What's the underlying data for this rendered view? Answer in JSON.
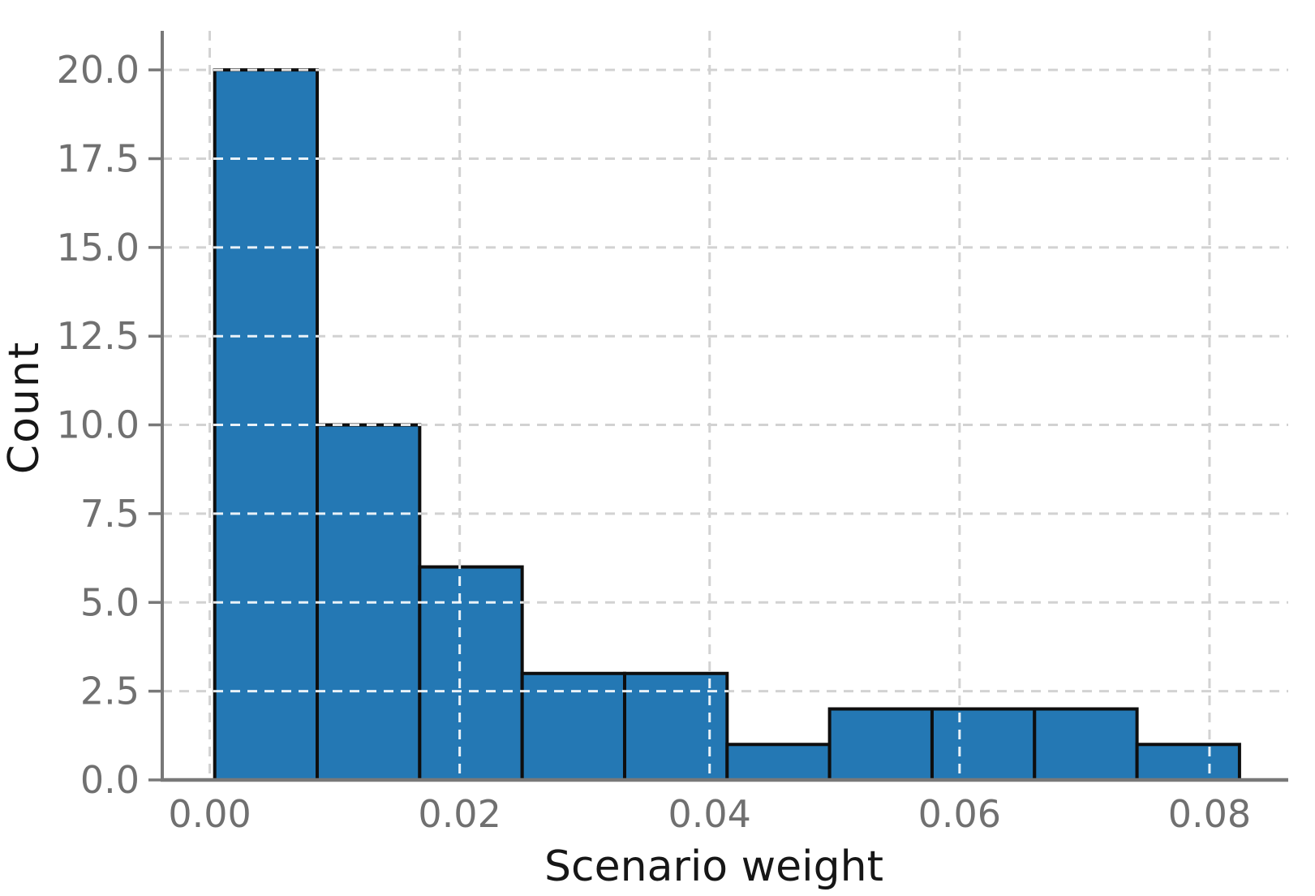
{
  "chart_data": {
    "type": "bar",
    "variant": "histogram",
    "title": "",
    "xlabel": "Scenario weight",
    "ylabel": "Count",
    "bins": {
      "start": 0.0004,
      "width": 0.0082,
      "count": 10,
      "edges": [
        0.0004,
        0.0086,
        0.0168,
        0.025,
        0.0332,
        0.0414,
        0.0496,
        0.0578,
        0.066,
        0.0742,
        0.0824
      ]
    },
    "counts": [
      20,
      10,
      6,
      3,
      3,
      1,
      2,
      2,
      2,
      1
    ],
    "total_observations": 50,
    "x_axis": {
      "ticks": [
        0.0,
        0.02,
        0.04,
        0.06,
        0.08
      ],
      "tick_labels": [
        "0.00",
        "0.02",
        "0.04",
        "0.06",
        "0.08"
      ],
      "lim": [
        -0.0038,
        0.0863
      ]
    },
    "y_axis": {
      "ticks": [
        0.0,
        2.5,
        5.0,
        7.5,
        10.0,
        12.5,
        15.0,
        17.5,
        20.0
      ],
      "tick_labels": [
        "0.0",
        "2.5",
        "5.0",
        "7.5",
        "10.0",
        "12.5",
        "15.0",
        "17.5",
        "20.0"
      ],
      "lim": [
        0,
        21.1
      ]
    },
    "grid": {
      "visible": true,
      "style": "dashed"
    },
    "legend": {
      "visible": false
    },
    "colors": {
      "bar_fill": "#2478b4",
      "bar_edge": "#0e0e0e",
      "grid": "#d2d2d2",
      "grid_over_bars": "#ffffff",
      "spine": "#787878",
      "tick_mark": "#787878",
      "tick_label": "#707070",
      "axis_label": "#161616"
    }
  }
}
